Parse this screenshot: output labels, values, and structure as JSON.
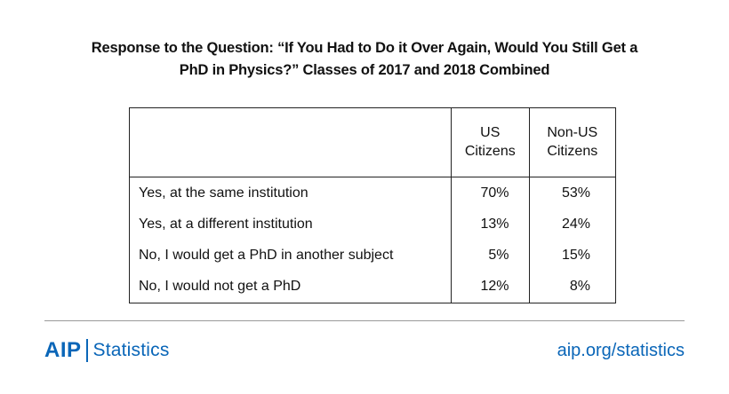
{
  "title": {
    "line1": "Response to the Question: “If You Had to Do it Over Again, Would You Still Get a",
    "line2": "PhD in Physics?” Classes of 2017 and 2018 Combined"
  },
  "chart_data": {
    "type": "table",
    "columns": [
      {
        "line1": "US",
        "line2": "Citizens"
      },
      {
        "line1": "Non-US",
        "line2": "Citizens"
      }
    ],
    "rows": [
      {
        "label": "Yes, at the same institution",
        "us": "70%",
        "non_us": "53%"
      },
      {
        "label": "Yes, at a different institution",
        "us": "13%",
        "non_us": "24%"
      },
      {
        "label": "No, I would get a PhD in another subject",
        "us": "5%",
        "non_us": "15%"
      },
      {
        "label": "No, I would not get a PhD",
        "us": "12%",
        "non_us": "8%"
      }
    ]
  },
  "footer": {
    "logo_mark": "AIP",
    "logo_text": "Statistics",
    "url": "aip.org/statistics"
  },
  "colors": {
    "brand": "#0a66b8",
    "text": "#111111",
    "border": "#222222",
    "divider": "#9a9a9a"
  }
}
